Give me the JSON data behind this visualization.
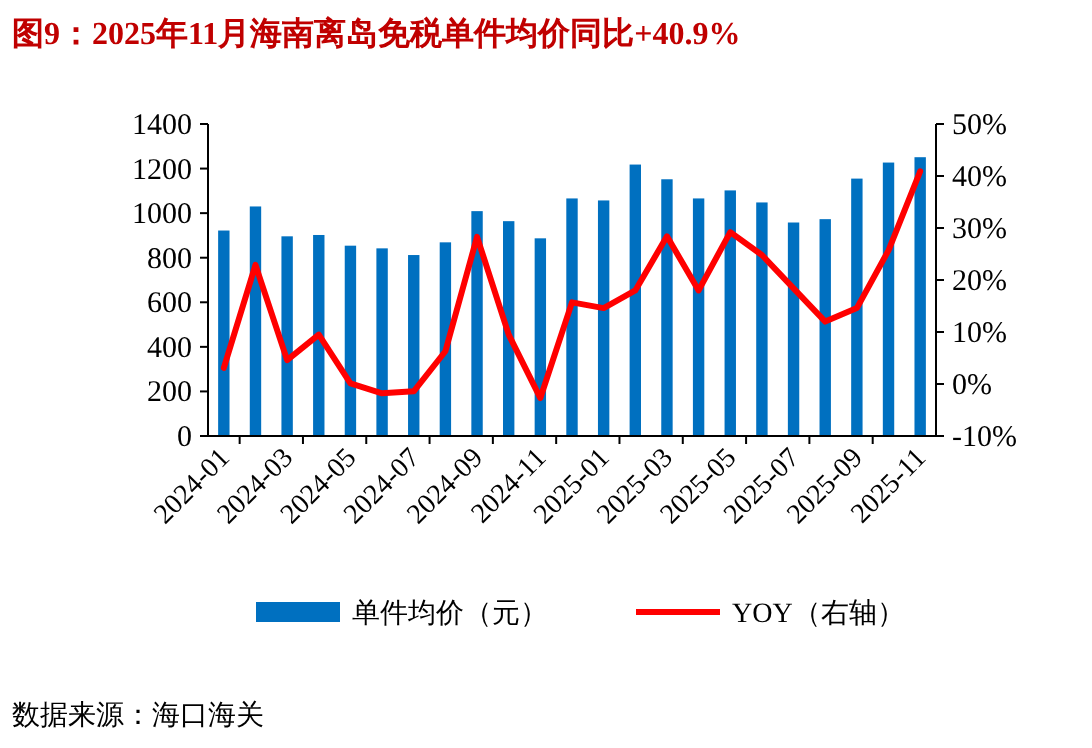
{
  "chart_data": {
    "type": "bar",
    "title": "图9：2025年11月海南离岛免税单件均价同比+40.9%",
    "categories": [
      "2024-01",
      null,
      "2024-03",
      null,
      "2024-05",
      null,
      "2024-07",
      null,
      "2024-09",
      null,
      "2024-11",
      null,
      "2025-01",
      null,
      "2025-03",
      null,
      "2025-05",
      null,
      "2025-07",
      null,
      "2025-09",
      null,
      "2025-11"
    ],
    "series": [
      {
        "name": "单件均价（元）",
        "color": "#0070c0",
        "values": [
          922,
          1030,
          896,
          902,
          854,
          842,
          812,
          869,
          1009,
          964,
          887,
          1066,
          1057,
          1218,
          1152,
          1066,
          1102,
          1048,
          958,
          973,
          1155,
          1227,
          1251
        ]
      },
      {
        "name": "YOY（右轴）",
        "type": "line",
        "axis": "y2",
        "color": "#ff0000",
        "values": [
          3.1,
          22.9,
          4.6,
          9.5,
          0.1,
          -1.8,
          -1.4,
          6.3,
          28.3,
          9.5,
          -2.7,
          15.7,
          14.6,
          18.0,
          28.4,
          18.0,
          29.2,
          24.8,
          18.4,
          12.0,
          14.6,
          25.7,
          40.9
        ]
      }
    ],
    "ylim": [
      0,
      1400
    ],
    "yticks": [
      0,
      200,
      400,
      600,
      800,
      1000,
      1200,
      1400
    ],
    "y2lim": [
      -10,
      50
    ],
    "y2ticks": [
      {
        "value": -10,
        "label": "-10%"
      },
      {
        "value": 0,
        "label": "0%"
      },
      {
        "value": 10,
        "label": "10%"
      },
      {
        "value": 20,
        "label": "20%"
      },
      {
        "value": 30,
        "label": "30%"
      },
      {
        "value": 40,
        "label": "40%"
      },
      {
        "value": 50,
        "label": "50%"
      }
    ],
    "legend": "bottom",
    "grid": false,
    "annotations": [
      "数据来源：海口海关"
    ]
  }
}
